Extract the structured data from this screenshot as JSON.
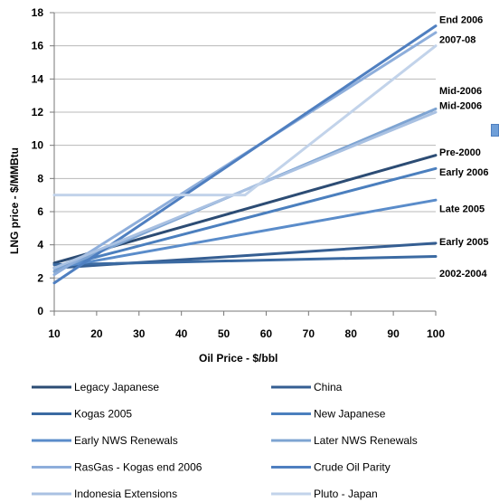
{
  "chart_data": {
    "type": "line",
    "xlabel": "Oil Price - $/bbl",
    "ylabel": "LNG price - $/MMBtu",
    "xlim": [
      10,
      100
    ],
    "ylim": [
      0,
      18
    ],
    "x_ticks": [
      10,
      20,
      30,
      40,
      50,
      60,
      70,
      80,
      90,
      100
    ],
    "y_ticks": [
      0,
      2,
      4,
      6,
      8,
      10,
      12,
      14,
      16,
      18
    ],
    "grid": true,
    "legend_position": "bottom",
    "series": [
      {
        "name": "Legacy Japanese",
        "color": "#2c4c74",
        "x": [
          10,
          100
        ],
        "y": [
          2.9,
          9.4
        ]
      },
      {
        "name": "China",
        "color": "#355e92",
        "x": [
          10,
          100
        ],
        "y": [
          2.6,
          4.1
        ]
      },
      {
        "name": "Kogas 2005",
        "color": "#3b6aa2",
        "x": [
          10,
          100
        ],
        "y": [
          2.8,
          3.3
        ]
      },
      {
        "name": "New Japanese",
        "color": "#4b7fbe",
        "x": [
          10,
          100
        ],
        "y": [
          2.6,
          8.6
        ]
      },
      {
        "name": "Early NWS Renewals",
        "color": "#5a8cca",
        "x": [
          10,
          100
        ],
        "y": [
          2.6,
          6.7
        ]
      },
      {
        "name": "Later NWS Renewals",
        "color": "#7ea4d2",
        "x": [
          10,
          100
        ],
        "y": [
          2.4,
          12.2
        ]
      },
      {
        "name": "RasGas - Kogas end 2006",
        "color": "#8eaedb",
        "x": [
          10,
          100
        ],
        "y": [
          2.2,
          16.8
        ]
      },
      {
        "name": "Crude Oil Parity",
        "color": "#4f7fc0",
        "x": [
          10,
          100
        ],
        "y": [
          1.7,
          17.2
        ]
      },
      {
        "name": "Indonesia Extensions",
        "color": "#a9c1e2",
        "x": [
          10,
          100
        ],
        "y": [
          2.6,
          12.0
        ]
      },
      {
        "name": "Pluto - Japan",
        "color": "#c2d3ea",
        "x": [
          10,
          55,
          100
        ],
        "y": [
          7.0,
          7.0,
          16.0
        ]
      }
    ],
    "annotations": [
      {
        "text": "End 2006",
        "y": 17.6
      },
      {
        "text": "2007-08",
        "y": 16.4
      },
      {
        "text": "Mid-2006",
        "y": 13.3
      },
      {
        "text": "Mid-2006",
        "y": 12.4
      },
      {
        "text": "Pre-2000",
        "y": 9.6
      },
      {
        "text": "Early 2006",
        "y": 8.4
      },
      {
        "text": "Late 2005",
        "y": 6.2
      },
      {
        "text": "Early 2005",
        "y": 4.2
      },
      {
        "text": "2002-2004",
        "y": 2.3
      }
    ]
  }
}
